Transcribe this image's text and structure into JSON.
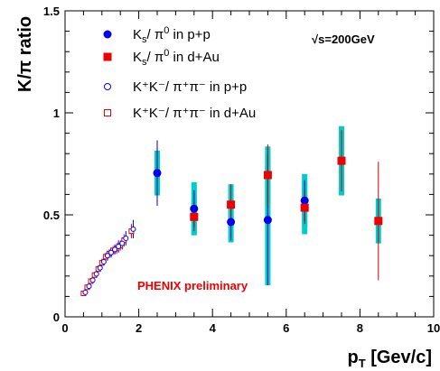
{
  "chart_data": {
    "type": "scatter",
    "xlabel": {
      "main": "p",
      "sub": "T",
      "rest": " [Gev/c]"
    },
    "ylabel": "K/π ratio",
    "xlim": [
      0,
      10
    ],
    "ylim": [
      0,
      1.5
    ],
    "x_ticks": [
      {
        "v": 0,
        "label": "0"
      },
      {
        "v": 2,
        "label": "2"
      },
      {
        "v": 4,
        "label": "4"
      },
      {
        "v": 6,
        "label": "6"
      },
      {
        "v": 8,
        "label": "8"
      },
      {
        "v": 10,
        "label": "10"
      }
    ],
    "y_ticks": [
      {
        "v": 0,
        "label": "0"
      },
      {
        "v": 0.5,
        "label": "0.5"
      },
      {
        "v": 1.0,
        "label": "1"
      },
      {
        "v": 1.5,
        "label": "1.5"
      }
    ],
    "annotations": {
      "energy": "√s=200GeV",
      "preliminary": "PHENIX preliminary"
    },
    "colors": {
      "pp": "#0000ee",
      "dAu": "#ee0000",
      "syst_band": "#00cccc",
      "pp_stat": "#0000aa",
      "dAu_stat": "#cc0000",
      "preliminary": "#ee0000"
    },
    "legend_position": "top-left",
    "legend": [
      {
        "series": "ks_pp",
        "symbol": "filled-circle",
        "base": "K",
        "sub": "s",
        "mid": "/ π",
        "sup2": "0",
        "tail": " in p+p"
      },
      {
        "series": "ks_dau",
        "symbol": "filled-square",
        "base": "K",
        "sub": "s",
        "mid": "/ π",
        "sup2": "0",
        "tail": " in d+Au"
      },
      {
        "series": "kc_pp",
        "symbol": "open-circle",
        "text": "K⁺K⁻/ π⁺π⁻ in p+p"
      },
      {
        "series": "kc_dau",
        "symbol": "open-square",
        "text": "K⁺K⁻/ π⁺π⁻ in d+Au"
      }
    ],
    "series": [
      {
        "id": "ks_pp",
        "name": "Ks/π0 in p+p",
        "x": [
          2.5,
          3.5,
          4.5,
          5.5,
          6.5
        ],
        "y": [
          0.705,
          0.53,
          0.465,
          0.475,
          0.57
        ],
        "stat": [
          0.16,
          0.09,
          0.09,
          0.32,
          0.1
        ],
        "syst": [
          0.11,
          0.13,
          0.1,
          0.32,
          0.13
        ]
      },
      {
        "id": "ks_dau",
        "name": "Ks/π0 in d+Au",
        "x": [
          3.5,
          4.5,
          5.5,
          6.5,
          7.5,
          8.5
        ],
        "y": [
          0.49,
          0.55,
          0.695,
          0.535,
          0.765,
          0.47
        ],
        "stat": [
          0.07,
          0.1,
          0.15,
          0.08,
          0.15,
          0.29
        ],
        "syst": [
          0.09,
          0.1,
          0.14,
          0.13,
          0.17,
          0.11
        ]
      },
      {
        "id": "kc_pp",
        "name": "K+K-/π+π- in p+p",
        "x": [
          0.55,
          0.65,
          0.75,
          0.85,
          0.95,
          1.05,
          1.15,
          1.25,
          1.35,
          1.45,
          1.55,
          1.65,
          1.85
        ],
        "y": [
          0.12,
          0.15,
          0.18,
          0.21,
          0.24,
          0.27,
          0.3,
          0.315,
          0.33,
          0.345,
          0.36,
          0.385,
          0.43
        ],
        "err": [
          0.015,
          0.015,
          0.015,
          0.02,
          0.02,
          0.02,
          0.025,
          0.025,
          0.025,
          0.03,
          0.03,
          0.035,
          0.045
        ]
      },
      {
        "id": "kc_dau",
        "name": "K+K-/π+π- in d+Au",
        "x": [
          0.5,
          0.6,
          0.7,
          0.8,
          0.9,
          1.0,
          1.1,
          1.2,
          1.3,
          1.4,
          1.5,
          1.6,
          1.8
        ],
        "y": [
          0.115,
          0.145,
          0.175,
          0.205,
          0.235,
          0.265,
          0.295,
          0.31,
          0.325,
          0.335,
          0.35,
          0.375,
          0.42
        ],
        "err": [
          0.012,
          0.012,
          0.015,
          0.015,
          0.018,
          0.02,
          0.02,
          0.022,
          0.022,
          0.025,
          0.025,
          0.03,
          0.035
        ]
      }
    ]
  }
}
